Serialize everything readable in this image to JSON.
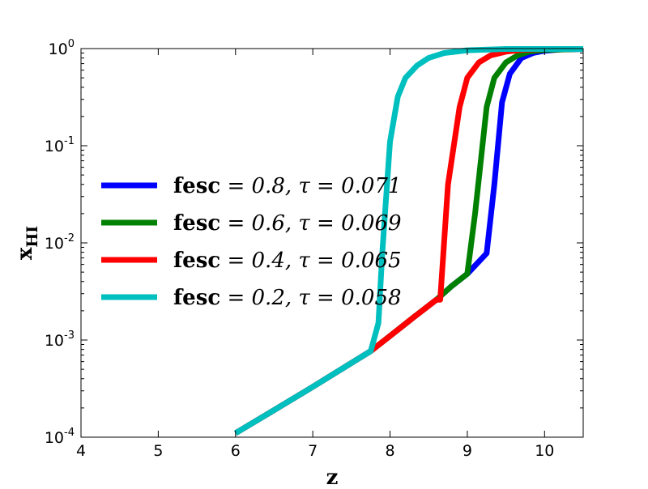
{
  "chart_data": {
    "type": "line",
    "xlabel": "z",
    "ylabel": "x",
    "ylabel_sub": "HI",
    "xlim": [
      4,
      10.5
    ],
    "ylim": [
      0.0001,
      1
    ],
    "yscale": "log",
    "xticks": [
      4,
      5,
      6,
      7,
      8,
      9,
      10
    ],
    "yticks": [
      {
        "value": 0.0001,
        "base": "10",
        "exp": "-4"
      },
      {
        "value": 0.001,
        "base": "10",
        "exp": "-3"
      },
      {
        "value": 0.01,
        "base": "10",
        "exp": "-2"
      },
      {
        "value": 0.1,
        "base": "10",
        "exp": "-1"
      },
      {
        "value": 1,
        "base": "10",
        "exp": "0"
      }
    ],
    "grid": false,
    "legend_position": "center-left",
    "series": [
      {
        "label_fesc": "fesc",
        "label_rest": "= 0.8, τ = 0.071",
        "color": "#0000ff",
        "x": [
          6.0,
          6.5,
          7.0,
          7.5,
          7.75,
          8.0,
          8.3,
          8.6,
          8.8,
          9.0,
          9.25,
          9.35,
          9.45,
          9.55,
          9.7,
          9.85,
          10.0,
          10.2,
          10.5
        ],
        "y": [
          0.00011,
          0.00019,
          0.00033,
          0.00058,
          0.00077,
          0.0011,
          0.0017,
          0.0026,
          0.0036,
          0.0048,
          0.0078,
          0.04,
          0.28,
          0.55,
          0.8,
          0.9,
          0.95,
          0.98,
          0.99
        ]
      },
      {
        "label_fesc": "fesc",
        "label_rest": "= 0.6, τ = 0.069",
        "color": "#008000",
        "x": [
          6.0,
          6.5,
          7.0,
          7.5,
          7.75,
          8.0,
          8.3,
          8.6,
          8.8,
          9.0,
          9.1,
          9.25,
          9.35,
          9.5,
          9.65,
          9.8,
          10.0,
          10.5
        ],
        "y": [
          0.00011,
          0.00019,
          0.00033,
          0.00058,
          0.00077,
          0.0011,
          0.0017,
          0.0026,
          0.0036,
          0.0048,
          0.02,
          0.25,
          0.5,
          0.72,
          0.85,
          0.93,
          0.97,
          0.99
        ]
      },
      {
        "label_fesc": "fesc",
        "label_rest": "= 0.4, τ = 0.065",
        "color": "#ff0000",
        "x": [
          6.0,
          6.5,
          7.0,
          7.5,
          7.75,
          8.0,
          8.3,
          8.6,
          8.65,
          8.75,
          8.9,
          9.0,
          9.15,
          9.3,
          9.5,
          9.7,
          10.0,
          10.5
        ],
        "y": [
          0.00011,
          0.00019,
          0.00033,
          0.00058,
          0.00077,
          0.0011,
          0.0017,
          0.0026,
          0.0026,
          0.04,
          0.25,
          0.5,
          0.72,
          0.85,
          0.93,
          0.97,
          0.99,
          0.99
        ]
      },
      {
        "label_fesc": "fesc",
        "label_rest": "= 0.2, τ = 0.058",
        "color": "#00bfbf",
        "x": [
          6.0,
          6.5,
          7.0,
          7.5,
          7.75,
          7.85,
          7.9,
          8.0,
          8.1,
          8.2,
          8.35,
          8.5,
          8.7,
          9.0,
          9.5,
          10.5
        ],
        "y": [
          0.00011,
          0.00019,
          0.00033,
          0.00058,
          0.00077,
          0.0015,
          0.008,
          0.11,
          0.32,
          0.5,
          0.67,
          0.8,
          0.9,
          0.96,
          0.99,
          0.99
        ]
      }
    ]
  }
}
